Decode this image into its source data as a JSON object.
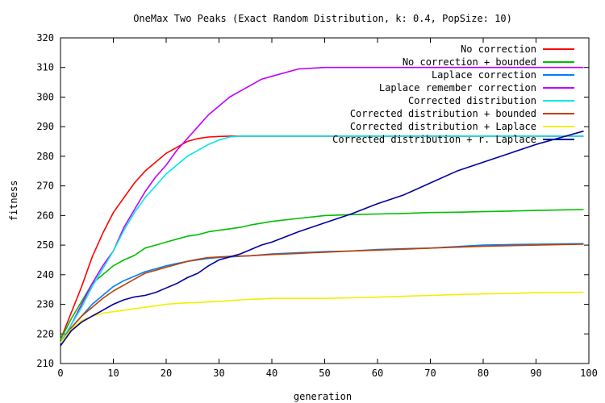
{
  "chart_data": {
    "type": "line",
    "title": "OneMax Two Peaks (Exact Random Distribution, k: 0.4, PopSize: 10)",
    "xlabel": "generation",
    "ylabel": "fitness",
    "xlim": [
      0,
      100
    ],
    "ylim": [
      210,
      320
    ],
    "xticks": [
      0,
      10,
      20,
      30,
      40,
      50,
      60,
      70,
      80,
      90,
      100
    ],
    "yticks": [
      210,
      220,
      230,
      240,
      250,
      260,
      270,
      280,
      290,
      300,
      310,
      320
    ],
    "grid": false,
    "legend_position": "top-right",
    "x": [
      0,
      2,
      4,
      6,
      8,
      10,
      12,
      14,
      16,
      18,
      20,
      22,
      24,
      26,
      28,
      30,
      32,
      34,
      36,
      38,
      40,
      45,
      50,
      55,
      60,
      65,
      70,
      75,
      80,
      85,
      90,
      95,
      99
    ],
    "series": [
      {
        "name": "No correction",
        "color": "#ff0000",
        "values": [
          218,
          227,
          236,
          246,
          254,
          261,
          266,
          271,
          275,
          278,
          281,
          283,
          285,
          286,
          286.5,
          286.7,
          286.8,
          286.8,
          286.8,
          286.8,
          286.8,
          286.8,
          286.8,
          286.8,
          286.8,
          286.8,
          286.8,
          286.8,
          286.8,
          286.8,
          286.8,
          286.8,
          286.8
        ]
      },
      {
        "name": "No correction + bounded",
        "color": "#00c000",
        "values": [
          218,
          225,
          231,
          237,
          240,
          243,
          245,
          246.5,
          249,
          250,
          251,
          252,
          253,
          253.5,
          254.5,
          255,
          255.5,
          256,
          256.8,
          257.4,
          258,
          259,
          260,
          260.3,
          260.5,
          260.7,
          261,
          261.1,
          261.3,
          261.5,
          261.7,
          261.9,
          262
        ]
      },
      {
        "name": "Laplace correction",
        "color": "#0080ff",
        "values": [
          217,
          222,
          226,
          230,
          233,
          236,
          238,
          239.5,
          241,
          242,
          243,
          243.8,
          244.5,
          245,
          245.5,
          245.8,
          246,
          246.2,
          246.4,
          246.7,
          247,
          247.4,
          247.8,
          248,
          248.5,
          248.8,
          249,
          249.5,
          250,
          250.2,
          250.3,
          250.4,
          250.5
        ]
      },
      {
        "name": "Laplace remember correction",
        "color": "#c000ff",
        "values": [
          217,
          223,
          230,
          237,
          243,
          248,
          256,
          262,
          268,
          273,
          277,
          282,
          286,
          290,
          294,
          297,
          300,
          302,
          304,
          306,
          307,
          309.5,
          310,
          310,
          310,
          310,
          310,
          310,
          310,
          310,
          310,
          310,
          310
        ]
      },
      {
        "name": "Corrected distribution",
        "color": "#00e8e8",
        "values": [
          217,
          223,
          229,
          236,
          242,
          248,
          255,
          261,
          266,
          270,
          274,
          277,
          280,
          282,
          284,
          285.5,
          286.5,
          286.8,
          286.8,
          286.8,
          286.8,
          286.8,
          286.8,
          286.8,
          286.8,
          286.8,
          286.8,
          286.8,
          286.8,
          286.8,
          286.8,
          286.8,
          286.8
        ]
      },
      {
        "name": "Corrected distribution + bounded",
        "color": "#c04000",
        "values": [
          217,
          222,
          226,
          229,
          232,
          234.5,
          236.5,
          238.5,
          240.5,
          241.5,
          242.5,
          243.5,
          244.5,
          245.2,
          245.8,
          246,
          246.2,
          246.3,
          246.4,
          246.6,
          246.8,
          247.2,
          247.6,
          248,
          248.3,
          248.6,
          249,
          249.3,
          249.6,
          249.8,
          250,
          250.2,
          250.3
        ]
      },
      {
        "name": "Corrected distribution + Laplace",
        "color": "#f0f000",
        "values": [
          217,
          221.5,
          224.5,
          226,
          227,
          227.5,
          228,
          228.5,
          229,
          229.5,
          230,
          230.3,
          230.5,
          230.6,
          230.8,
          231,
          231.2,
          231.5,
          231.7,
          231.8,
          232,
          232,
          232,
          232.2,
          232.4,
          232.7,
          233,
          233.3,
          233.5,
          233.7,
          233.9,
          234,
          234.1
        ]
      },
      {
        "name": "Corrected distribution + r. Laplace",
        "color": "#0000a0",
        "values": [
          216,
          221,
          224,
          226,
          228,
          230,
          231.5,
          232.5,
          233,
          234,
          235.5,
          237,
          239,
          240.5,
          243,
          245,
          246,
          247,
          248.5,
          250,
          251,
          254.5,
          257.5,
          260.5,
          264,
          267,
          271,
          275,
          278,
          281,
          284,
          286.5,
          288.5
        ]
      }
    ]
  }
}
